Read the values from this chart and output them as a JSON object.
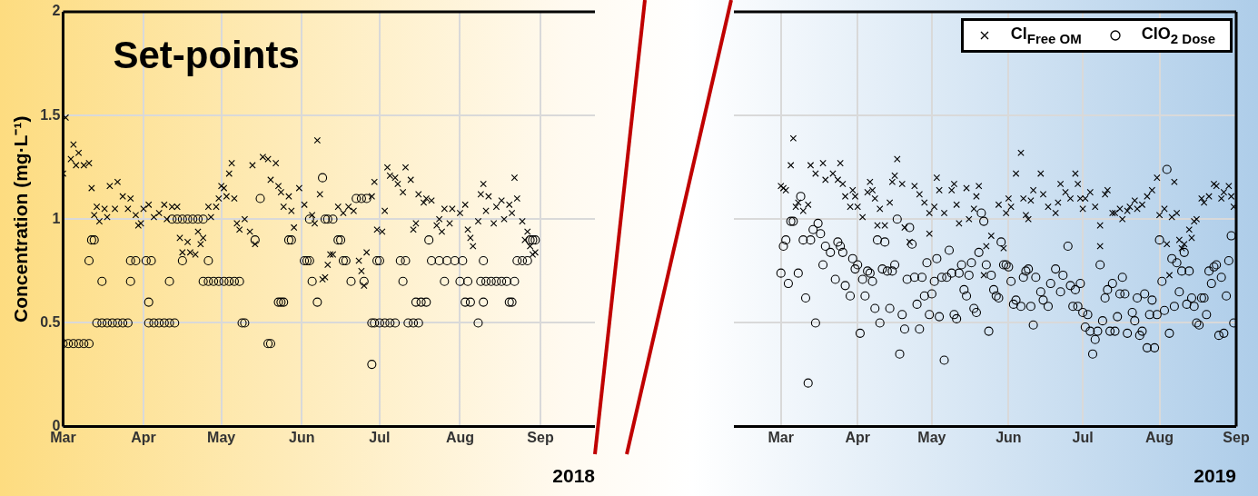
{
  "chart_data": [
    {
      "type": "scatter",
      "xlabel": "2018",
      "ylabel": "Concentration (mg·L⁻¹)",
      "annotations": [
        "Set-points"
      ],
      "xlim": [
        "2018-03-01",
        "2018-09-22"
      ],
      "xticks": [
        {
          "value": "2018-03-01",
          "label": "Mar"
        },
        {
          "value": "2018-04-01",
          "label": "Apr"
        },
        {
          "value": "2018-05-01",
          "label": "May"
        },
        {
          "value": "2018-06-01",
          "label": "Jun"
        },
        {
          "value": "2018-07-01",
          "label": "Jul"
        },
        {
          "value": "2018-08-01",
          "label": "Aug"
        },
        {
          "value": "2018-09-01",
          "label": "Sep"
        }
      ],
      "ylim": [
        0,
        2
      ],
      "yticks": [
        0,
        0.5,
        1,
        1.5,
        2
      ],
      "grid": true,
      "legend": false,
      "series": [
        {
          "color": "#000000",
          "marker": "cross",
          "x": [
            "2018-03-01",
            "2018-03-02",
            "2018-03-04",
            "2018-03-05",
            "2018-03-06",
            "2018-03-07",
            "2018-03-09",
            "2018-03-11",
            "2018-03-12",
            "2018-03-13",
            "2018-03-14",
            "2018-03-15",
            "2018-03-17",
            "2018-03-18",
            "2018-03-19",
            "2018-03-21",
            "2018-03-22",
            "2018-03-24",
            "2018-03-26",
            "2018-03-27",
            "2018-03-29",
            "2018-03-30",
            "2018-03-31",
            "2018-04-01",
            "2018-04-03",
            "2018-04-05",
            "2018-04-07",
            "2018-04-09",
            "2018-04-10",
            "2018-04-12",
            "2018-04-14",
            "2018-04-15",
            "2018-04-16",
            "2018-04-18",
            "2018-04-19",
            "2018-04-21",
            "2018-04-22",
            "2018-04-23",
            "2018-04-24",
            "2018-04-26",
            "2018-04-27",
            "2018-04-29",
            "2018-04-30",
            "2018-05-01",
            "2018-05-02",
            "2018-05-03",
            "2018-05-04",
            "2018-05-05",
            "2018-05-06",
            "2018-05-07",
            "2018-05-08",
            "2018-05-10",
            "2018-05-12",
            "2018-05-13",
            "2018-05-14",
            "2018-05-17",
            "2018-05-19",
            "2018-05-20",
            "2018-05-22",
            "2018-05-23",
            "2018-05-24",
            "2018-05-25",
            "2018-05-27",
            "2018-05-28",
            "2018-05-29",
            "2018-05-31",
            "2018-06-02",
            "2018-06-05",
            "2018-06-06",
            "2018-06-07",
            "2018-06-08",
            "2018-06-09",
            "2018-06-10",
            "2018-06-11",
            "2018-06-12",
            "2018-06-13",
            "2018-06-15",
            "2018-06-17",
            "2018-06-19",
            "2018-06-21",
            "2018-06-23",
            "2018-06-24",
            "2018-06-25",
            "2018-06-26",
            "2018-06-28",
            "2018-06-29",
            "2018-06-30",
            "2018-07-02",
            "2018-07-03",
            "2018-07-04",
            "2018-07-05",
            "2018-07-07",
            "2018-07-08",
            "2018-07-10",
            "2018-07-11",
            "2018-07-13",
            "2018-07-14",
            "2018-07-15",
            "2018-07-16",
            "2018-07-18",
            "2018-07-19",
            "2018-07-21",
            "2018-07-23",
            "2018-07-24",
            "2018-07-25",
            "2018-07-26",
            "2018-07-28",
            "2018-07-29",
            "2018-08-01",
            "2018-08-03",
            "2018-08-04",
            "2018-08-05",
            "2018-08-06",
            "2018-08-08",
            "2018-08-09",
            "2018-08-10",
            "2018-08-11",
            "2018-08-12",
            "2018-08-14",
            "2018-08-15",
            "2018-08-17",
            "2018-08-18",
            "2018-08-20",
            "2018-08-21",
            "2018-08-22",
            "2018-08-23",
            "2018-08-25",
            "2018-08-26",
            "2018-08-27",
            "2018-08-28",
            "2018-08-29",
            "2018-08-30"
          ],
          "values": [
            1.22,
            1.49,
            1.29,
            1.36,
            1.26,
            1.32,
            1.26,
            1.27,
            1.15,
            1.02,
            1.06,
            0.99,
            1.05,
            1.01,
            1.16,
            1.05,
            1.18,
            1.11,
            1.05,
            1.1,
            1.02,
            0.97,
            0.98,
            1.05,
            1.07,
            1.01,
            1.03,
            1.07,
            1.0,
            1.06,
            1.06,
            0.91,
            0.84,
            0.89,
            0.84,
            0.83,
            0.94,
            0.88,
            0.91,
            1.06,
            1.01,
            1.06,
            1.1,
            1.16,
            1.15,
            1.11,
            1.22,
            1.27,
            1.1,
            0.98,
            0.95,
            1.0,
            0.94,
            1.26,
            0.88,
            1.3,
            1.29,
            1.19,
            1.27,
            1.16,
            1.13,
            1.06,
            1.11,
            1.04,
            0.96,
            1.15,
            1.07,
            1.02,
            0.98,
            1.38,
            1.12,
            0.71,
            0.72,
            0.78,
            0.83,
            0.83,
            1.06,
            1.03,
            1.06,
            1.04,
            0.8,
            0.75,
            0.68,
            0.84,
            1.11,
            1.18,
            0.95,
            0.94,
            1.04,
            1.25,
            1.21,
            1.2,
            1.17,
            1.13,
            1.25,
            1.19,
            0.95,
            0.98,
            1.12,
            1.08,
            1.1,
            1.09,
            0.97,
            1.0,
            0.94,
            1.05,
            0.98,
            1.05,
            1.03,
            1.07,
            0.95,
            0.91,
            0.87,
            0.99,
            1.12,
            1.17,
            1.04,
            1.11,
            0.98,
            1.06,
            1.09,
            1.0,
            1.07,
            1.03,
            1.2,
            1.1,
            0.99,
            0.9,
            0.94,
            0.87,
            0.83,
            0.84
          ]
        },
        {
          "color": "#000000",
          "marker": "circle",
          "x": [
            "2018-03-01",
            "2018-03-03",
            "2018-03-05",
            "2018-03-07",
            "2018-03-09",
            "2018-03-11",
            "2018-03-11",
            "2018-03-12",
            "2018-03-13",
            "2018-03-14",
            "2018-03-16",
            "2018-03-16",
            "2018-03-18",
            "2018-03-20",
            "2018-03-22",
            "2018-03-24",
            "2018-03-26",
            "2018-03-27",
            "2018-03-27",
            "2018-03-29",
            "2018-04-02",
            "2018-04-03",
            "2018-04-03",
            "2018-04-04",
            "2018-04-05",
            "2018-04-07",
            "2018-04-09",
            "2018-04-11",
            "2018-04-11",
            "2018-04-12",
            "2018-04-13",
            "2018-04-14",
            "2018-04-16",
            "2018-04-16",
            "2018-04-18",
            "2018-04-20",
            "2018-04-22",
            "2018-04-24",
            "2018-04-24",
            "2018-04-26",
            "2018-04-26",
            "2018-04-28",
            "2018-04-30",
            "2018-05-02",
            "2018-05-04",
            "2018-05-06",
            "2018-05-08",
            "2018-05-09",
            "2018-05-10",
            "2018-05-14",
            "2018-05-16",
            "2018-05-19",
            "2018-05-20",
            "2018-05-23",
            "2018-05-24",
            "2018-05-25",
            "2018-05-27",
            "2018-05-28",
            "2018-06-02",
            "2018-06-03",
            "2018-06-04",
            "2018-06-04",
            "2018-06-05",
            "2018-06-07",
            "2018-06-09",
            "2018-06-10",
            "2018-06-11",
            "2018-06-13",
            "2018-06-15",
            "2018-06-16",
            "2018-06-17",
            "2018-06-18",
            "2018-06-20",
            "2018-06-22",
            "2018-06-24",
            "2018-06-25",
            "2018-06-26",
            "2018-06-28",
            "2018-06-28",
            "2018-06-29",
            "2018-06-30",
            "2018-07-01",
            "2018-07-01",
            "2018-07-03",
            "2018-07-05",
            "2018-07-07",
            "2018-07-09",
            "2018-07-10",
            "2018-07-11",
            "2018-07-12",
            "2018-07-14",
            "2018-07-15",
            "2018-07-16",
            "2018-07-17",
            "2018-07-19",
            "2018-07-20",
            "2018-07-21",
            "2018-07-24",
            "2018-07-26",
            "2018-07-27",
            "2018-07-30",
            "2018-08-01",
            "2018-08-02",
            "2018-08-03",
            "2018-08-04",
            "2018-08-05",
            "2018-08-08",
            "2018-08-09",
            "2018-08-10",
            "2018-08-10",
            "2018-08-11",
            "2018-08-13",
            "2018-08-15",
            "2018-08-17",
            "2018-08-19",
            "2018-08-20",
            "2018-08-21",
            "2018-08-22",
            "2018-08-23",
            "2018-08-25",
            "2018-08-27",
            "2018-08-28",
            "2018-08-29",
            "2018-08-30"
          ],
          "values": [
            0.4,
            0.4,
            0.4,
            0.4,
            0.4,
            0.4,
            0.8,
            0.9,
            0.9,
            0.5,
            0.7,
            0.5,
            0.5,
            0.5,
            0.5,
            0.5,
            0.5,
            0.7,
            0.8,
            0.8,
            0.8,
            0.6,
            0.5,
            0.8,
            0.5,
            0.5,
            0.5,
            0.7,
            0.5,
            1.0,
            0.5,
            1.0,
            1.0,
            0.8,
            1.0,
            1.0,
            1.0,
            1.0,
            0.7,
            0.8,
            0.7,
            0.7,
            0.7,
            0.7,
            0.7,
            0.7,
            0.7,
            0.5,
            0.5,
            0.9,
            1.1,
            0.4,
            0.4,
            0.6,
            0.6,
            0.6,
            0.9,
            0.9,
            0.8,
            0.8,
            1.0,
            0.8,
            0.7,
            0.6,
            1.2,
            1.0,
            1.0,
            1.0,
            0.9,
            0.9,
            0.8,
            0.8,
            0.7,
            1.1,
            1.1,
            0.7,
            1.1,
            0.3,
            0.5,
            0.5,
            0.8,
            0.8,
            0.5,
            0.5,
            0.5,
            0.5,
            0.8,
            0.7,
            0.8,
            0.5,
            0.5,
            0.6,
            0.5,
            0.6,
            0.6,
            0.9,
            0.8,
            0.8,
            0.7,
            0.8,
            0.8,
            0.7,
            0.8,
            0.6,
            0.7,
            0.6,
            0.5,
            0.7,
            0.6,
            0.8,
            0.7,
            0.7,
            0.7,
            0.7,
            0.7,
            0.6,
            0.6,
            0.7,
            0.8,
            0.8,
            0.8,
            0.9,
            0.9,
            0.9
          ]
        }
      ]
    },
    {
      "type": "scatter",
      "xlabel": "2019",
      "xlim": [
        "2019-02-10",
        "2019-09-01"
      ],
      "xticks": [
        {
          "value": "2019-03-01",
          "label": "Mar"
        },
        {
          "value": "2019-04-01",
          "label": "Apr"
        },
        {
          "value": "2019-05-01",
          "label": "May"
        },
        {
          "value": "2019-06-01",
          "label": "Jun"
        },
        {
          "value": "2019-07-01",
          "label": "Jul"
        },
        {
          "value": "2019-08-01",
          "label": "Aug"
        },
        {
          "value": "2019-09-01",
          "label": "Sep"
        }
      ],
      "ylim": [
        0,
        2
      ],
      "yticks": [
        0,
        0.5,
        1,
        1.5,
        2
      ],
      "tick_labels": "x",
      "grid": true,
      "legend": "top right",
      "series": [
        {
          "name": "Cl$_{Free OM}$",
          "color": "#000000",
          "marker": "cross",
          "x": [
            "2019-03-01",
            "2019-03-02",
            "2019-03-03",
            "2019-03-06",
            "2019-03-05",
            "2019-03-07",
            "2019-03-08",
            "2019-03-10",
            "2019-03-12",
            "2019-03-13",
            "2019-03-15",
            "2019-03-18",
            "2019-03-19",
            "2019-03-22",
            "2019-03-24",
            "2019-03-25",
            "2019-03-26",
            "2019-03-27",
            "2019-03-30",
            "2019-03-31",
            "2019-03-29",
            "2019-04-01",
            "2019-04-03",
            "2019-04-05",
            "2019-04-06",
            "2019-04-07",
            "2019-04-08",
            "2019-04-09",
            "2019-04-10",
            "2019-04-12",
            "2019-04-14",
            "2019-04-15",
            "2019-04-17",
            "2019-04-16",
            "2019-04-19",
            "2019-04-20",
            "2019-04-22",
            "2019-04-24",
            "2019-04-26",
            "2019-04-28",
            "2019-04-30",
            "2019-04-30",
            "2019-05-02",
            "2019-05-03",
            "2019-05-04",
            "2019-05-06",
            "2019-05-09",
            "2019-05-10",
            "2019-05-11",
            "2019-05-12",
            "2019-05-15",
            "2019-05-16",
            "2019-05-18",
            "2019-05-19",
            "2019-05-20",
            "2019-05-22",
            "2019-05-23",
            "2019-05-25",
            "2019-05-28",
            "2019-05-30",
            "2019-05-31",
            "2019-06-01",
            "2019-06-02",
            "2019-06-04",
            "2019-06-06",
            "2019-06-07",
            "2019-06-08",
            "2019-06-09",
            "2019-06-10",
            "2019-06-11",
            "2019-06-14",
            "2019-06-15",
            "2019-06-17",
            "2019-06-20",
            "2019-06-21",
            "2019-06-22",
            "2019-06-24",
            "2019-06-26",
            "2019-06-28",
            "2019-06-29",
            "2019-06-30",
            "2019-07-01",
            "2019-07-02",
            "2019-07-04",
            "2019-07-06",
            "2019-07-08",
            "2019-07-08",
            "2019-07-10",
            "2019-07-11",
            "2019-07-13",
            "2019-07-14",
            "2019-07-16",
            "2019-07-17",
            "2019-07-19",
            "2019-07-20",
            "2019-07-22",
            "2019-07-23",
            "2019-07-25",
            "2019-07-27",
            "2019-07-29",
            "2019-07-31",
            "2019-08-01",
            "2019-08-03",
            "2019-08-04",
            "2019-08-05",
            "2019-08-06",
            "2019-08-07",
            "2019-08-08",
            "2019-08-09",
            "2019-08-10",
            "2019-08-11",
            "2019-08-13",
            "2019-08-14",
            "2019-08-15",
            "2019-08-16",
            "2019-08-18",
            "2019-08-19",
            "2019-08-21",
            "2019-08-23",
            "2019-08-24",
            "2019-08-26",
            "2019-08-27",
            "2019-08-29",
            "2019-08-30",
            "2019-08-31"
          ],
          "values": [
            1.16,
            1.15,
            1.14,
            1.39,
            1.26,
            1.06,
            1.08,
            1.04,
            1.07,
            1.26,
            1.22,
            1.27,
            1.19,
            1.22,
            1.19,
            1.27,
            1.17,
            1.11,
            1.14,
            1.11,
            1.06,
            1.06,
            1.01,
            1.13,
            1.18,
            1.14,
            1.1,
            0.97,
            1.05,
            0.97,
            1.08,
            1.18,
            1.29,
            1.21,
            1.17,
            0.96,
            0.89,
            1.16,
            1.12,
            1.08,
            1.03,
            0.93,
            1.06,
            1.2,
            1.14,
            1.03,
            1.14,
            1.17,
            1.07,
            0.98,
            1.15,
            1.0,
            1.05,
            1.11,
            1.16,
            0.73,
            0.87,
            0.92,
            1.07,
            0.86,
            1.03,
            1.1,
            1.06,
            1.22,
            1.32,
            1.1,
            1.02,
            1.0,
            1.09,
            1.14,
            1.22,
            1.12,
            1.06,
            1.03,
            1.08,
            1.17,
            1.13,
            1.1,
            1.22,
            1.17,
            1.1,
            1.05,
            1.1,
            1.13,
            1.06,
            0.87,
            0.97,
            1.12,
            1.14,
            1.03,
            1.03,
            1.05,
            1.0,
            1.04,
            1.06,
            1.09,
            1.05,
            1.07,
            1.11,
            1.14,
            1.2,
            1.02,
            1.05,
            0.88,
            0.73,
            1.01,
            1.18,
            1.03,
            0.9,
            0.86,
            0.88,
            0.95,
            0.91,
            0.99,
            1.0,
            1.1,
            1.08,
            1.11,
            1.17,
            1.16,
            1.1,
            1.13,
            1.16,
            1.11,
            1.06
          ]
        },
        {
          "name": "ClO$_{2 Dose}$",
          "color": "#000000",
          "marker": "circle",
          "x": [
            "2019-03-01",
            "2019-03-02",
            "2019-03-03",
            "2019-03-04",
            "2019-03-05",
            "2019-03-06",
            "2019-03-08",
            "2019-03-09",
            "2019-03-10",
            "2019-03-11",
            "2019-03-12",
            "2019-03-13",
            "2019-03-14",
            "2019-03-15",
            "2019-03-16",
            "2019-03-17",
            "2019-03-18",
            "2019-03-19",
            "2019-03-21",
            "2019-03-23",
            "2019-03-24",
            "2019-03-25",
            "2019-03-26",
            "2019-03-27",
            "2019-03-29",
            "2019-03-30",
            "2019-03-31",
            "2019-04-01",
            "2019-04-02",
            "2019-04-03",
            "2019-04-04",
            "2019-04-05",
            "2019-04-06",
            "2019-04-07",
            "2019-04-08",
            "2019-04-09",
            "2019-04-10",
            "2019-04-11",
            "2019-04-12",
            "2019-04-13",
            "2019-04-14",
            "2019-04-15",
            "2019-04-16",
            "2019-04-17",
            "2019-04-18",
            "2019-04-19",
            "2019-04-20",
            "2019-04-21",
            "2019-04-22",
            "2019-04-23",
            "2019-04-24",
            "2019-04-25",
            "2019-04-26",
            "2019-04-27",
            "2019-04-28",
            "2019-04-29",
            "2019-04-30",
            "2019-05-01",
            "2019-05-02",
            "2019-05-03",
            "2019-05-04",
            "2019-05-05",
            "2019-05-06",
            "2019-05-07",
            "2019-05-08",
            "2019-05-09",
            "2019-05-10",
            "2019-05-11",
            "2019-05-12",
            "2019-05-13",
            "2019-05-14",
            "2019-05-15",
            "2019-05-16",
            "2019-05-17",
            "2019-05-18",
            "2019-05-19",
            "2019-05-20",
            "2019-05-21",
            "2019-05-22",
            "2019-05-23",
            "2019-05-24",
            "2019-05-25",
            "2019-05-26",
            "2019-05-27",
            "2019-05-28",
            "2019-05-29",
            "2019-05-30",
            "2019-05-31",
            "2019-06-01",
            "2019-06-02",
            "2019-06-03",
            "2019-06-04",
            "2019-06-06",
            "2019-06-07",
            "2019-06-08",
            "2019-06-09",
            "2019-06-10",
            "2019-06-11",
            "2019-06-12",
            "2019-06-14",
            "2019-06-15",
            "2019-06-17",
            "2019-06-18",
            "2019-06-20",
            "2019-06-22",
            "2019-06-23",
            "2019-06-25",
            "2019-06-26",
            "2019-06-27",
            "2019-06-28",
            "2019-06-29",
            "2019-06-30",
            "2019-07-01",
            "2019-07-02",
            "2019-07-03",
            "2019-07-04",
            "2019-07-05",
            "2019-07-06",
            "2019-07-07",
            "2019-07-08",
            "2019-07-09",
            "2019-07-10",
            "2019-07-11",
            "2019-07-12",
            "2019-07-13",
            "2019-07-14",
            "2019-07-15",
            "2019-07-16",
            "2019-07-17",
            "2019-07-18",
            "2019-07-19",
            "2019-07-21",
            "2019-07-22",
            "2019-07-23",
            "2019-07-24",
            "2019-07-25",
            "2019-07-26",
            "2019-07-27",
            "2019-07-28",
            "2019-07-29",
            "2019-07-30",
            "2019-07-31",
            "2019-08-01",
            "2019-08-02",
            "2019-08-03",
            "2019-08-04",
            "2019-08-05",
            "2019-08-06",
            "2019-08-07",
            "2019-08-08",
            "2019-08-09",
            "2019-08-10",
            "2019-08-11",
            "2019-08-12",
            "2019-08-13",
            "2019-08-14",
            "2019-08-15",
            "2019-08-16",
            "2019-08-17",
            "2019-08-18",
            "2019-08-19",
            "2019-08-20",
            "2019-08-21",
            "2019-08-22",
            "2019-08-23",
            "2019-08-24",
            "2019-08-25",
            "2019-08-26",
            "2019-08-27",
            "2019-08-28",
            "2019-08-29",
            "2019-08-30",
            "2019-08-31"
          ],
          "values": [
            0.74,
            0.87,
            0.9,
            0.69,
            0.99,
            0.99,
            0.74,
            1.11,
            0.9,
            0.62,
            0.21,
            0.9,
            0.95,
            0.5,
            0.98,
            0.93,
            0.78,
            0.87,
            0.84,
            0.71,
            0.89,
            0.87,
            0.84,
            0.68,
            0.63,
            0.81,
            0.76,
            0.78,
            0.45,
            0.71,
            0.63,
            0.75,
            0.74,
            0.7,
            0.57,
            0.9,
            0.5,
            0.76,
            0.89,
            0.75,
            0.57,
            0.75,
            0.78,
            1.0,
            0.35,
            0.54,
            0.47,
            0.71,
            0.96,
            0.88,
            0.72,
            0.59,
            0.47,
            0.72,
            0.63,
            0.79,
            0.54,
            0.64,
            0.7,
            0.81,
            0.53,
            0.72,
            0.32,
            0.72,
            0.85,
            0.74,
            0.54,
            0.52,
            0.74,
            0.78,
            0.66,
            0.63,
            0.73,
            0.79,
            0.57,
            0.55,
            0.84,
            1.03,
            0.99,
            0.78,
            0.46,
            0.73,
            0.66,
            0.63,
            0.62,
            0.89,
            0.78,
            0.78,
            0.77,
            0.7,
            0.59,
            0.61,
            0.58,
            0.72,
            0.75,
            0.76,
            0.58,
            0.49,
            0.72,
            0.65,
            0.61,
            0.58,
            0.69,
            0.76,
            0.65,
            0.73,
            0.87,
            0.68,
            0.58,
            0.66,
            0.58,
            0.69,
            0.55,
            0.48,
            0.54,
            0.46,
            0.35,
            0.42,
            0.46,
            0.78,
            0.51,
            0.62,
            0.66,
            0.46,
            0.69,
            0.46,
            0.53,
            0.64,
            0.72,
            0.64,
            0.45,
            0.55,
            0.51,
            0.62,
            0.44,
            0.46,
            0.64,
            0.38,
            0.54,
            0.61,
            0.38,
            0.54,
            0.9,
            0.7,
            0.56,
            1.24,
            0.45,
            0.81,
            0.58,
            0.79,
            0.65,
            0.75,
            0.84,
            0.59,
            0.75,
            0.62,
            0.58,
            0.5,
            0.49,
            0.62,
            0.62,
            0.54,
            0.75,
            0.69,
            0.77,
            0.78,
            0.44,
            0.72,
            0.45,
            0.63,
            0.8,
            0.92,
            0.5
          ]
        }
      ]
    }
  ]
}
